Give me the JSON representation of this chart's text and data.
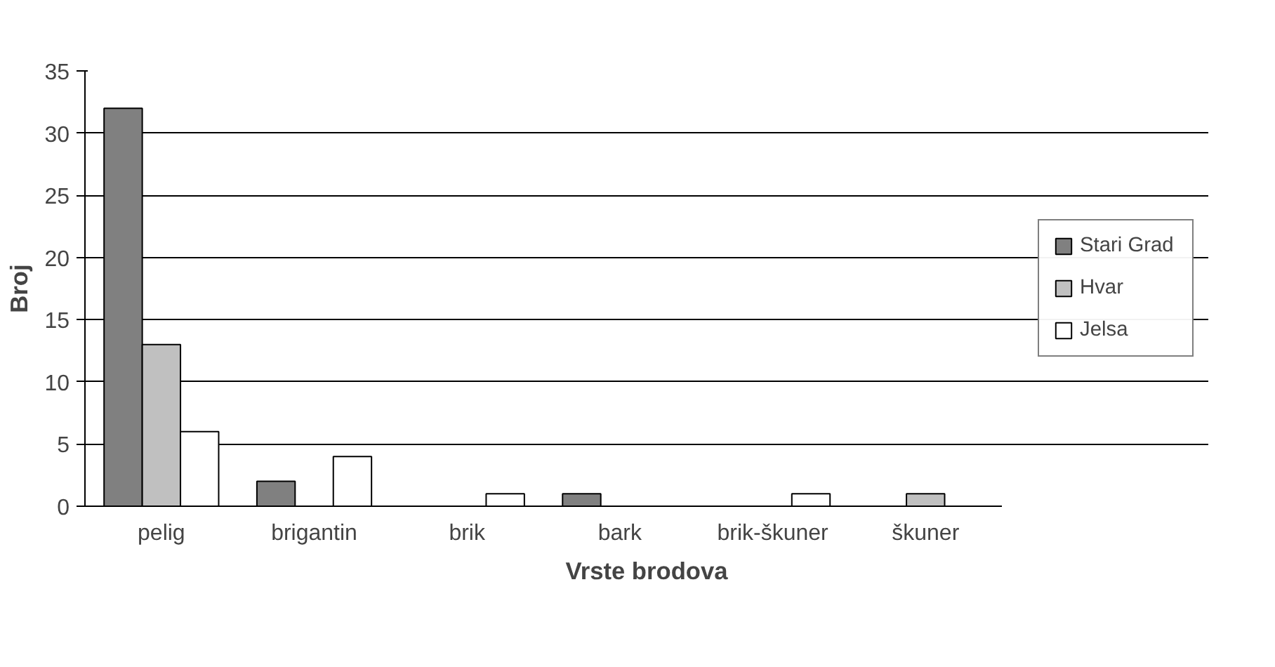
{
  "chart_data": {
    "type": "bar",
    "xlabel": "Vrste brodova",
    "ylabel": "Broj",
    "categories": [
      "pelig",
      "brigantin",
      "brik",
      "bark",
      "brik-škuner",
      "škuner"
    ],
    "series": [
      {
        "name": "Stari Grad",
        "color": "#808080",
        "values": [
          32,
          2,
          0,
          1,
          0,
          0
        ]
      },
      {
        "name": "Hvar",
        "color": "#c0c0c0",
        "values": [
          13,
          0,
          0,
          0,
          0,
          1
        ]
      },
      {
        "name": "Jelsa",
        "color": "#ffffff",
        "values": [
          6,
          4,
          1,
          0,
          1,
          0
        ]
      }
    ],
    "ylim": [
      0,
      35
    ],
    "yticks": [
      0,
      5,
      10,
      15,
      20,
      25,
      30,
      35
    ],
    "grid": "y",
    "legend": "right"
  }
}
